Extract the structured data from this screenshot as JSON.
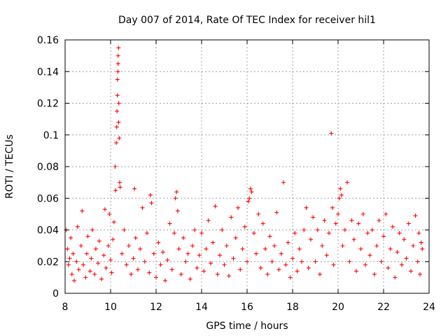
{
  "chart_data": {
    "type": "scatter",
    "title": "Day 007 of 2014, Rate Of TEC Index for receiver hil1",
    "xlabel": "GPS time / hours",
    "ylabel": "ROTI / TECUs",
    "xlim": [
      8,
      24
    ],
    "ylim": [
      0,
      0.16
    ],
    "xticks": [
      8,
      10,
      12,
      14,
      16,
      18,
      20,
      22,
      24
    ],
    "xtick_labels": [
      "8",
      "10",
      "12",
      "14",
      "16",
      "18",
      "20",
      "22",
      "24"
    ],
    "yticks": [
      0,
      0.02,
      0.04,
      0.06,
      0.08,
      0.1,
      0.12,
      0.14,
      0.16
    ],
    "ytick_labels": [
      "0",
      "0.02",
      "0.04",
      "0.06",
      "0.08",
      "0.1",
      "0.12",
      "0.14",
      "0.16"
    ],
    "grid": true,
    "marker": "+",
    "marker_color": "#ff0000",
    "series": [
      {
        "name": "hil1",
        "points": [
          [
            8.05,
            0.04
          ],
          [
            8.1,
            0.028
          ],
          [
            8.15,
            0.018
          ],
          [
            8.2,
            0.022
          ],
          [
            8.25,
            0.035
          ],
          [
            8.3,
            0.012
          ],
          [
            8.35,
            0.025
          ],
          [
            8.4,
            0.008
          ],
          [
            8.5,
            0.02
          ],
          [
            8.55,
            0.042
          ],
          [
            8.6,
            0.015
          ],
          [
            8.7,
            0.03
          ],
          [
            8.75,
            0.052
          ],
          [
            8.8,
            0.018
          ],
          [
            8.9,
            0.01
          ],
          [
            8.95,
            0.025
          ],
          [
            9.0,
            0.036
          ],
          [
            9.1,
            0.014
          ],
          [
            9.15,
            0.022
          ],
          [
            9.2,
            0.04
          ],
          [
            9.3,
            0.012
          ],
          [
            9.35,
            0.028
          ],
          [
            9.45,
            0.019
          ],
          [
            9.5,
            0.033
          ],
          [
            9.6,
            0.009
          ],
          [
            9.7,
            0.024
          ],
          [
            9.75,
            0.053
          ],
          [
            9.8,
            0.016
          ],
          [
            9.9,
            0.03
          ],
          [
            9.95,
            0.05
          ],
          [
            10.0,
            0.021
          ],
          [
            10.05,
            0.013
          ],
          [
            10.1,
            0.034
          ],
          [
            10.15,
            0.045
          ],
          [
            10.2,
            0.08
          ],
          [
            10.22,
            0.065
          ],
          [
            10.25,
            0.095
          ],
          [
            10.27,
            0.105
          ],
          [
            10.28,
            0.115
          ],
          [
            10.3,
            0.125
          ],
          [
            10.3,
            0.135
          ],
          [
            10.32,
            0.14
          ],
          [
            10.33,
            0.145
          ],
          [
            10.33,
            0.15
          ],
          [
            10.35,
            0.155
          ],
          [
            10.35,
            0.108
          ],
          [
            10.36,
            0.12
          ],
          [
            10.38,
            0.098
          ],
          [
            10.4,
            0.07
          ],
          [
            10.42,
            0.067
          ],
          [
            10.5,
            0.025
          ],
          [
            10.6,
            0.04
          ],
          [
            10.7,
            0.018
          ],
          [
            10.8,
            0.03
          ],
          [
            10.9,
            0.012
          ],
          [
            11.0,
            0.022
          ],
          [
            11.05,
            0.066
          ],
          [
            11.1,
            0.035
          ],
          [
            11.2,
            0.015
          ],
          [
            11.3,
            0.028
          ],
          [
            11.4,
            0.054
          ],
          [
            11.5,
            0.02
          ],
          [
            11.6,
            0.038
          ],
          [
            11.7,
            0.013
          ],
          [
            11.75,
            0.062
          ],
          [
            11.8,
            0.057
          ],
          [
            11.9,
            0.025
          ],
          [
            12.0,
            0.01
          ],
          [
            12.1,
            0.032
          ],
          [
            12.2,
            0.018
          ],
          [
            12.3,
            0.026
          ],
          [
            12.4,
            0.008
          ],
          [
            12.5,
            0.021
          ],
          [
            12.6,
            0.044
          ],
          [
            12.7,
            0.015
          ],
          [
            12.8,
            0.038
          ],
          [
            12.85,
            0.06
          ],
          [
            12.9,
            0.064
          ],
          [
            12.95,
            0.052
          ],
          [
            13.0,
            0.028
          ],
          [
            13.1,
            0.012
          ],
          [
            13.2,
            0.035
          ],
          [
            13.3,
            0.02
          ],
          [
            13.4,
            0.025
          ],
          [
            13.5,
            0.009
          ],
          [
            13.6,
            0.03
          ],
          [
            13.7,
            0.04
          ],
          [
            13.8,
            0.016
          ],
          [
            13.9,
            0.024
          ],
          [
            14.0,
            0.038
          ],
          [
            14.1,
            0.014
          ],
          [
            14.2,
            0.028
          ],
          [
            14.3,
            0.046
          ],
          [
            14.4,
            0.019
          ],
          [
            14.5,
            0.032
          ],
          [
            14.6,
            0.055
          ],
          [
            14.7,
            0.012
          ],
          [
            14.8,
            0.024
          ],
          [
            14.9,
            0.04
          ],
          [
            15.0,
            0.018
          ],
          [
            15.1,
            0.03
          ],
          [
            15.2,
            0.011
          ],
          [
            15.3,
            0.048
          ],
          [
            15.4,
            0.022
          ],
          [
            15.5,
            0.035
          ],
          [
            15.6,
            0.054
          ],
          [
            15.7,
            0.015
          ],
          [
            15.8,
            0.028
          ],
          [
            15.9,
            0.042
          ],
          [
            16.0,
            0.02
          ],
          [
            16.05,
            0.058
          ],
          [
            16.1,
            0.06
          ],
          [
            16.15,
            0.066
          ],
          [
            16.2,
            0.064
          ],
          [
            16.3,
            0.038
          ],
          [
            16.4,
            0.025
          ],
          [
            16.5,
            0.05
          ],
          [
            16.6,
            0.016
          ],
          [
            16.7,
            0.044
          ],
          [
            16.8,
            0.028
          ],
          [
            16.9,
            0.012
          ],
          [
            17.0,
            0.036
          ],
          [
            17.1,
            0.02
          ],
          [
            17.2,
            0.03
          ],
          [
            17.3,
            0.051
          ],
          [
            17.4,
            0.015
          ],
          [
            17.5,
            0.025
          ],
          [
            17.6,
            0.07
          ],
          [
            17.7,
            0.018
          ],
          [
            17.8,
            0.032
          ],
          [
            17.9,
            0.01
          ],
          [
            18.0,
            0.022
          ],
          [
            18.1,
            0.038
          ],
          [
            18.2,
            0.014
          ],
          [
            18.3,
            0.028
          ],
          [
            18.4,
            0.02
          ],
          [
            18.5,
            0.04
          ],
          [
            18.6,
            0.054
          ],
          [
            18.7,
            0.016
          ],
          [
            18.8,
            0.034
          ],
          [
            18.9,
            0.048
          ],
          [
            19.0,
            0.02
          ],
          [
            19.1,
            0.04
          ],
          [
            19.2,
            0.012
          ],
          [
            19.3,
            0.03
          ],
          [
            19.4,
            0.046
          ],
          [
            19.5,
            0.024
          ],
          [
            19.6,
            0.038
          ],
          [
            19.7,
            0.101
          ],
          [
            19.75,
            0.054
          ],
          [
            19.8,
            0.018
          ],
          [
            19.9,
            0.044
          ],
          [
            20.0,
            0.05
          ],
          [
            20.05,
            0.06
          ],
          [
            20.1,
            0.066
          ],
          [
            20.15,
            0.062
          ],
          [
            20.2,
            0.03
          ],
          [
            20.3,
            0.04
          ],
          [
            20.4,
            0.07
          ],
          [
            20.5,
            0.02
          ],
          [
            20.6,
            0.046
          ],
          [
            20.7,
            0.034
          ],
          [
            20.8,
            0.014
          ],
          [
            20.9,
            0.044
          ],
          [
            21.0,
            0.028
          ],
          [
            21.1,
            0.05
          ],
          [
            21.2,
            0.018
          ],
          [
            21.3,
            0.038
          ],
          [
            21.4,
            0.024
          ],
          [
            21.5,
            0.04
          ],
          [
            21.6,
            0.012
          ],
          [
            21.7,
            0.03
          ],
          [
            21.8,
            0.046
          ],
          [
            21.9,
            0.02
          ],
          [
            22.0,
            0.036
          ],
          [
            22.1,
            0.05
          ],
          [
            22.2,
            0.016
          ],
          [
            22.3,
            0.028
          ],
          [
            22.4,
            0.042
          ],
          [
            22.5,
            0.01
          ],
          [
            22.6,
            0.026
          ],
          [
            22.7,
            0.038
          ],
          [
            22.8,
            0.018
          ],
          [
            22.9,
            0.034
          ],
          [
            23.0,
            0.022
          ],
          [
            23.1,
            0.044
          ],
          [
            23.2,
            0.014
          ],
          [
            23.3,
            0.03
          ],
          [
            23.4,
            0.049
          ],
          [
            23.5,
            0.02
          ],
          [
            23.55,
            0.038
          ],
          [
            23.6,
            0.012
          ],
          [
            23.65,
            0.032
          ],
          [
            23.7,
            0.028
          ]
        ]
      }
    ]
  }
}
